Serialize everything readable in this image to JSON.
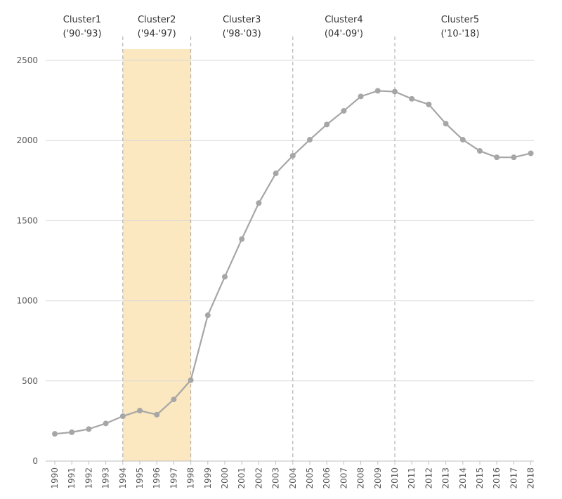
{
  "chart_data": {
    "type": "line",
    "title": "",
    "xlabel": "",
    "ylabel": "",
    "ylim": [
      0,
      2500
    ],
    "yticks": [
      0,
      500,
      1000,
      1500,
      2000,
      2500
    ],
    "grid": "horizontal",
    "x": [
      1990,
      1991,
      1992,
      1993,
      1994,
      1995,
      1996,
      1997,
      1998,
      1999,
      2000,
      2001,
      2002,
      2003,
      2004,
      2005,
      2006,
      2007,
      2008,
      2009,
      2010,
      2011,
      2012,
      2013,
      2014,
      2015,
      2016,
      2017,
      2018
    ],
    "series": [
      {
        "values": [
          170,
          180,
          200,
          235,
          280,
          315,
          290,
          385,
          505,
          910,
          1150,
          1385,
          1610,
          1795,
          1905,
          2005,
          2100,
          2185,
          2275,
          2310,
          2305,
          2260,
          2225,
          2105,
          2005,
          1935,
          1895,
          1895,
          1920
        ],
        "color": "#a6a6a6"
      }
    ],
    "highlight": {
      "from": 1994,
      "to": 1998,
      "color": "#fbe7c0"
    },
    "clusters": [
      {
        "name": "Cluster1",
        "range": "('90-'93)",
        "start": 1990,
        "end": 1994
      },
      {
        "name": "Cluster2",
        "range": "('94-'97)",
        "start": 1994,
        "end": 1998
      },
      {
        "name": "Cluster3",
        "range": "('98-'03)",
        "start": 1998,
        "end": 2004
      },
      {
        "name": "Cluster4",
        "range": "(04'-09')",
        "start": 2004,
        "end": 2010
      },
      {
        "name": "Cluster5",
        "range": "('10-'18)",
        "start": 2010,
        "end": 2018
      }
    ],
    "dividers": [
      1994,
      1998,
      2004,
      2010
    ]
  }
}
